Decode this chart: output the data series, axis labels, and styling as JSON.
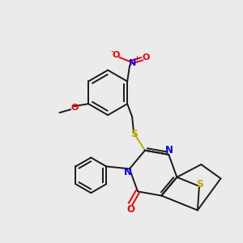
{
  "bg_color": "#ebebeb",
  "C": "#1a1a1a",
  "N": "#0000ee",
  "O": "#ee0000",
  "S": "#bbaa00",
  "lw": 1.4,
  "figsize": [
    3.0,
    3.0
  ],
  "dpi": 100
}
